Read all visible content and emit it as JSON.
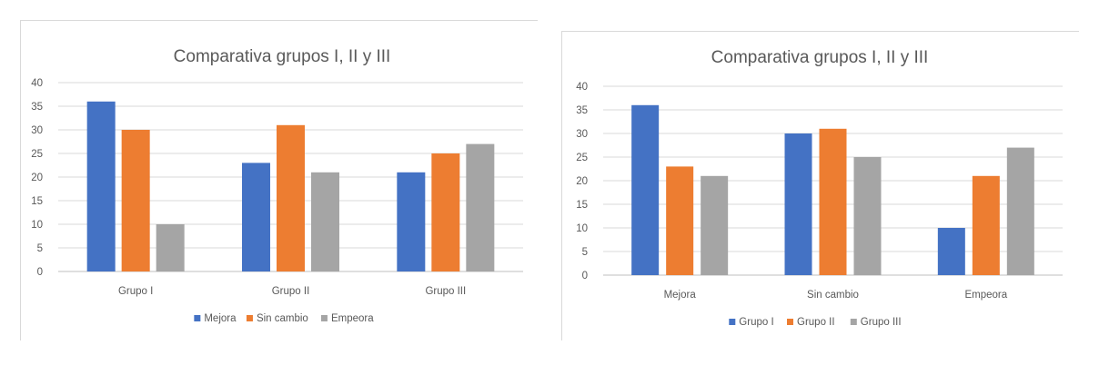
{
  "chart_data": [
    {
      "type": "bar",
      "title": "Comparativa grupos I, II y III",
      "categories": [
        "Grupo I",
        "Grupo II",
        "Grupo III"
      ],
      "series": [
        {
          "name": "Mejora",
          "color": "#4472c4",
          "values": [
            36,
            23,
            21
          ]
        },
        {
          "name": "Sin cambio",
          "color": "#ed7d31",
          "values": [
            30,
            31,
            25
          ]
        },
        {
          "name": "Empeora",
          "color": "#a5a5a5",
          "values": [
            10,
            21,
            27
          ]
        }
      ],
      "ylim": [
        0,
        40
      ],
      "yticks": [
        0,
        5,
        10,
        15,
        20,
        25,
        30,
        35,
        40
      ],
      "grid": true,
      "legend": "bottom"
    },
    {
      "type": "bar",
      "title": "Comparativa grupos I, II y III",
      "categories": [
        "Mejora",
        "Sin cambio",
        "Empeora"
      ],
      "series": [
        {
          "name": "Grupo I",
          "color": "#4472c4",
          "values": [
            36,
            30,
            10
          ]
        },
        {
          "name": "Grupo II",
          "color": "#ed7d31",
          "values": [
            23,
            31,
            21
          ]
        },
        {
          "name": "Grupo III",
          "color": "#a5a5a5",
          "values": [
            21,
            25,
            27
          ]
        }
      ],
      "ylim": [
        0,
        40
      ],
      "yticks": [
        0,
        5,
        10,
        15,
        20,
        25,
        30,
        35,
        40
      ],
      "grid": true,
      "legend": "bottom"
    }
  ]
}
